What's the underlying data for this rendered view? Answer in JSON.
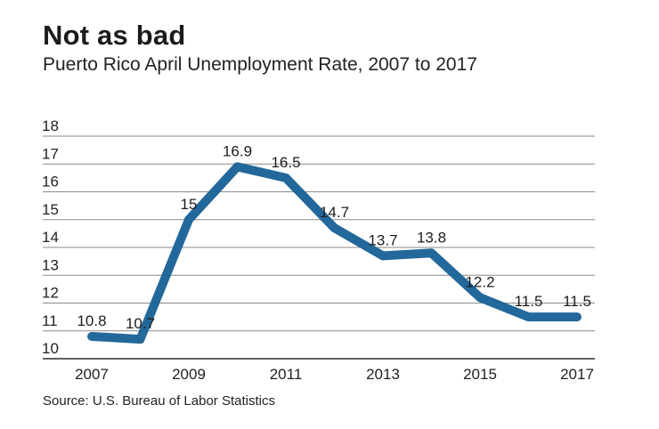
{
  "header": {
    "title": "Not as bad",
    "subtitle": "Puerto Rico April Unemployment Rate, 2007 to 2017"
  },
  "footer": {
    "source": "Source: U.S. Bureau of Labor Statistics"
  },
  "colors": {
    "line": "#23689b",
    "grid": "#8a8a8a"
  },
  "chart_data": {
    "type": "line",
    "title": "Not as bad",
    "subtitle": "Puerto Rico April Unemployment Rate, 2007 to 2017",
    "xlabel": "",
    "ylabel": "",
    "x": [
      2007,
      2008,
      2009,
      2010,
      2011,
      2012,
      2013,
      2014,
      2015,
      2016,
      2017
    ],
    "values": [
      10.8,
      10.7,
      15,
      16.9,
      16.5,
      14.7,
      13.7,
      13.8,
      12.2,
      11.5,
      11.5
    ],
    "value_labels": [
      "10.8",
      "10.7",
      "15",
      "16.9",
      "16.5",
      "14.7",
      "13.7",
      "13.8",
      "12.2",
      "11.5",
      "11.5"
    ],
    "x_ticks": [
      "2007",
      "2009",
      "2011",
      "2013",
      "2015",
      "2017"
    ],
    "y_ticks": [
      "10",
      "11",
      "12",
      "13",
      "14",
      "15",
      "16",
      "17",
      "18"
    ],
    "ylim": [
      10,
      18
    ],
    "xlim": [
      2007,
      2017
    ],
    "grid": true,
    "legend": "none"
  }
}
